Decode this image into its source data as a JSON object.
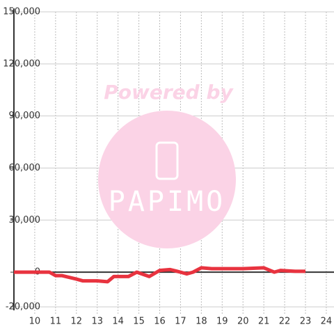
{
  "chart_data": {
    "type": "line",
    "watermark": {
      "title": "Powered by",
      "brand": "PAPIMO"
    },
    "x": [
      9,
      10.7,
      11,
      11.3,
      12,
      12.3,
      13,
      13.5,
      13.8,
      14.5,
      14.9,
      15.5,
      16,
      16.5,
      17,
      17.3,
      17.6,
      18,
      18.5,
      19,
      20,
      21,
      21.5,
      21.8,
      22.5,
      23
    ],
    "series": [
      {
        "color": "#e8333f",
        "values": [
          0,
          0,
          -2000,
          -2000,
          -4000,
          -5000,
          -5000,
          -5500,
          -2500,
          -2500,
          0,
          -2500,
          1000,
          1500,
          0,
          -1000,
          0,
          2500,
          2000,
          2000,
          2000,
          2500,
          0,
          1000,
          500,
          500
        ]
      }
    ],
    "xlim": [
      9,
      24.37
    ],
    "xticks": [
      10,
      11,
      12,
      13,
      14,
      15,
      16,
      17,
      18,
      19,
      20,
      21,
      22,
      23,
      24
    ],
    "ylim": [
      -20000,
      150000
    ],
    "yticks": [
      {
        "value": -20000,
        "label": "-20,000"
      },
      0,
      {
        "value": 30000,
        "label": "30,000"
      },
      {
        "value": 60000,
        "label": "60,000"
      },
      {
        "value": 90000,
        "label": "90,000"
      },
      {
        "value": 120000,
        "label": "120,000"
      },
      {
        "value": 150000,
        "label": "150,000"
      }
    ],
    "grid": true
  }
}
